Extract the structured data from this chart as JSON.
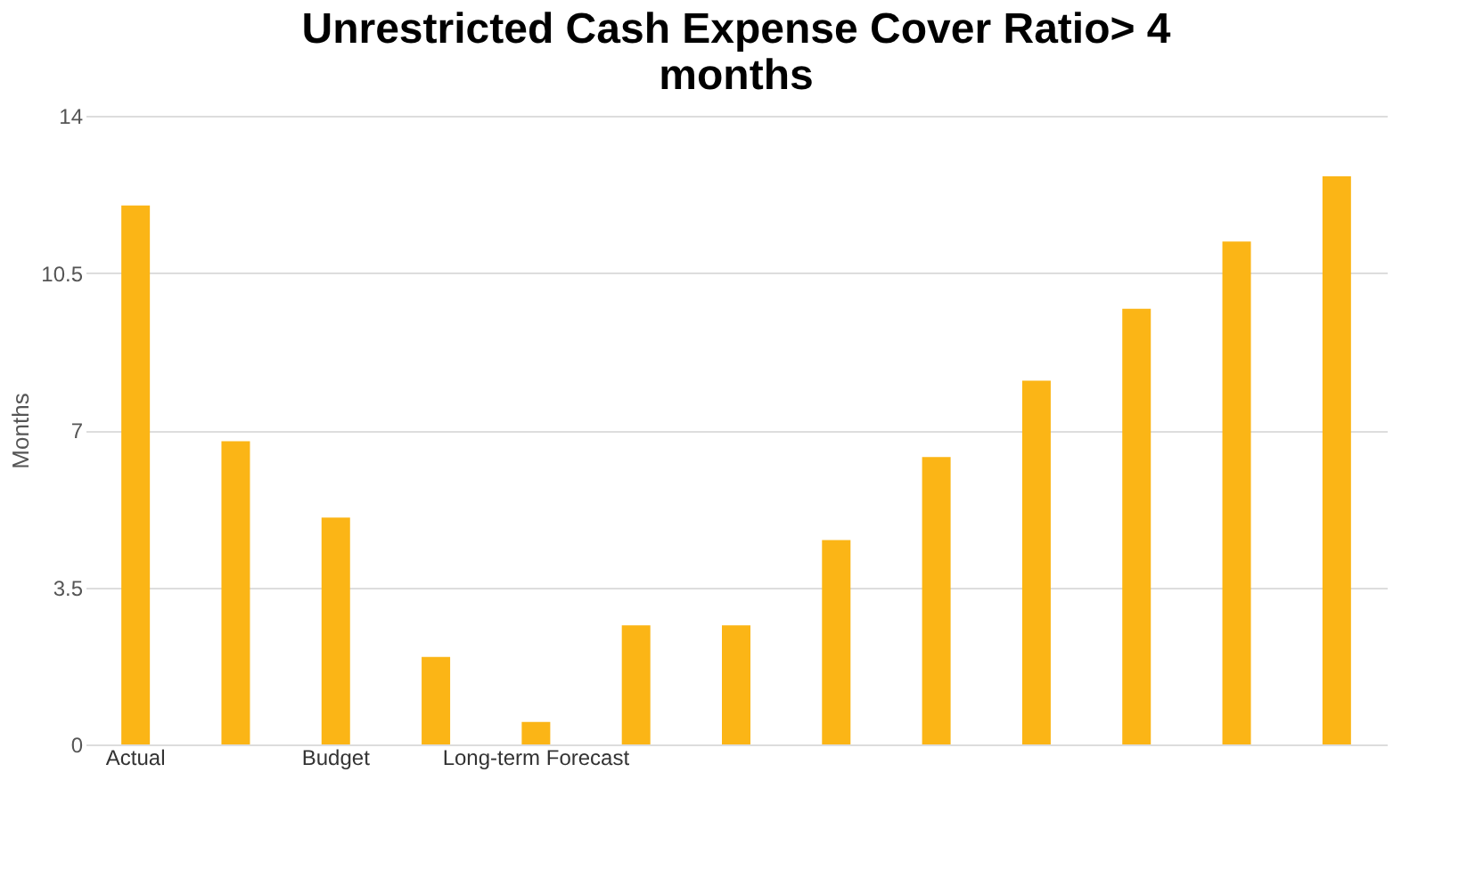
{
  "chart_data": {
    "type": "bar",
    "title": "Unrestricted Cash Expense Cover Ratio> 4 months",
    "ylabel": "Months",
    "categories": [
      "Actual",
      null,
      "Budget",
      null,
      "Long-term Forecast",
      null,
      null,
      null,
      null,
      null,
      null,
      null,
      null
    ],
    "values": [
      12.0,
      6.75,
      5.05,
      1.95,
      0.5,
      2.65,
      2.65,
      4.55,
      6.4,
      8.1,
      9.7,
      11.2,
      12.65
    ],
    "color": "#fbb516",
    "ylim": [
      0,
      14
    ],
    "yticks": [
      0,
      3.5,
      7,
      10.5,
      14
    ],
    "grid": "y"
  }
}
